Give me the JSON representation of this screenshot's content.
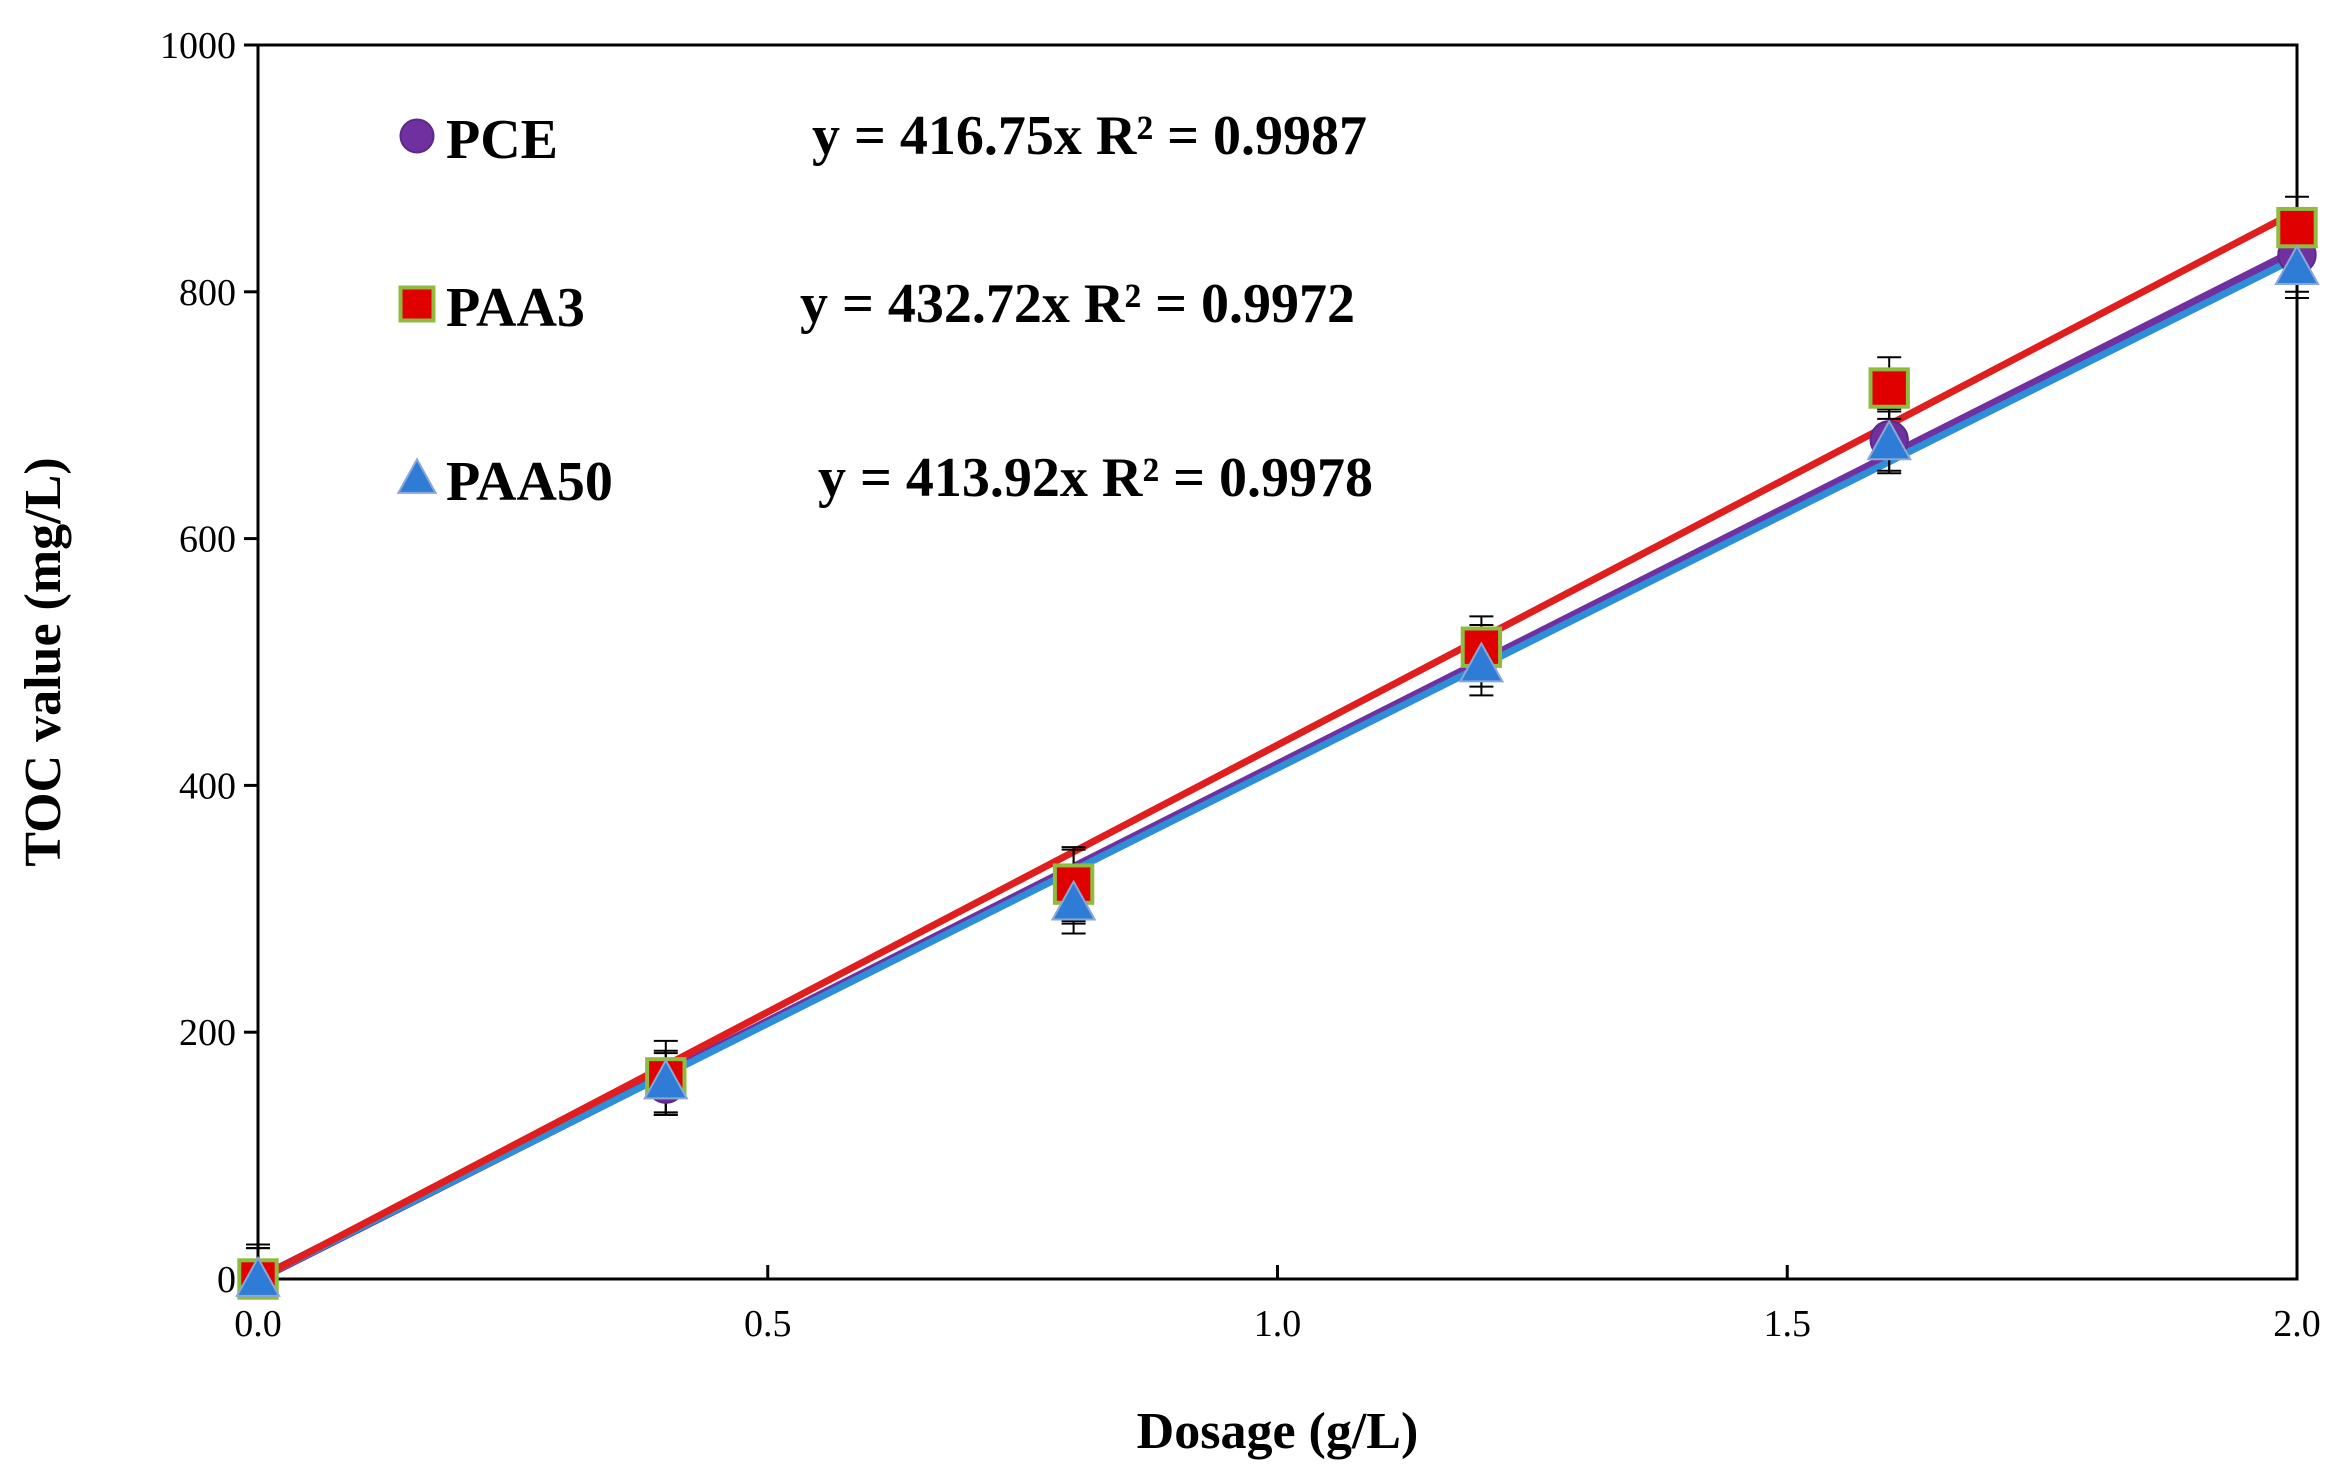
{
  "chart_data": {
    "type": "scatter",
    "title": "",
    "xlabel": "Dosage (g/L)",
    "ylabel": "TOC value (mg/L)",
    "xlim": [
      0,
      2
    ],
    "ylim": [
      0,
      1000
    ],
    "xticks": [
      "0.0",
      "0.5",
      "1.0",
      "1.5",
      "2.0"
    ],
    "xtick_values": [
      0,
      0.5,
      1.0,
      1.5,
      2.0
    ],
    "yticks": [
      "0",
      "200",
      "400",
      "600",
      "800",
      "1000"
    ],
    "ytick_values": [
      0,
      200,
      400,
      600,
      800,
      1000
    ],
    "grid": false,
    "legend_position": "top-left",
    "x": [
      0,
      0.4,
      0.8,
      1.2,
      1.6,
      2.0
    ],
    "series": [
      {
        "name": "PCE",
        "marker": "circle",
        "color": "#7030a0",
        "values": [
          0,
          158,
          318,
          505,
          680,
          830
        ],
        "error": [
          25,
          25,
          30,
          25,
          25,
          30
        ],
        "fit_slope": 416.75,
        "fit_color": "#7030a0",
        "equation": "y = 416.75x",
        "r2": "R² = 0.9987"
      },
      {
        "name": "PAA3",
        "marker": "square",
        "color": "#e00000",
        "edge_color": "#8fbc3f",
        "values": [
          0,
          163,
          320,
          512,
          722,
          852
        ],
        "error": [
          28,
          30,
          30,
          25,
          25,
          25
        ],
        "fit_slope": 432.72,
        "fit_color": "#e01e1e",
        "equation": "y = 432.72x",
        "r2": "R² = 0.9972"
      },
      {
        "name": "PAA50",
        "marker": "triangle",
        "color": "#2f7cd6",
        "values": [
          0,
          160,
          305,
          498,
          678,
          820
        ],
        "error": [
          25,
          25,
          25,
          25,
          25,
          25
        ],
        "fit_slope": 413.92,
        "fit_color": "#2e8fd8",
        "equation": "y = 413.92x",
        "r2": "R² = 0.9978"
      }
    ]
  }
}
